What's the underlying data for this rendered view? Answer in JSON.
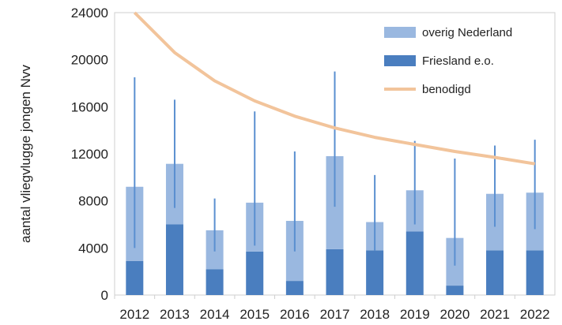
{
  "chart_data": {
    "type": "bar",
    "stacked": true,
    "categories": [
      "2012",
      "2013",
      "2014",
      "2015",
      "2016",
      "2017",
      "2018",
      "2019",
      "2020",
      "2021",
      "2022"
    ],
    "ylabel": "aantal vliegvlugge jongen Nvv",
    "ylim": [
      0,
      24000
    ],
    "yticks": [
      0,
      4000,
      8000,
      12000,
      16000,
      20000,
      24000
    ],
    "grid": false,
    "legend_position": "top-right",
    "series": [
      {
        "name": "Friesland e.o.",
        "kind": "bar",
        "color": "#4a7ebf",
        "values": [
          2900,
          6000,
          2200,
          3700,
          1200,
          3900,
          3800,
          5400,
          800,
          3800,
          3800
        ]
      },
      {
        "name": "overig Nederland",
        "kind": "bar",
        "color": "#9ab8e0",
        "values": [
          6300,
          5150,
          3300,
          4150,
          5100,
          7900,
          2400,
          3500,
          4050,
          4800,
          4900
        ]
      },
      {
        "name": "benodigd",
        "kind": "line",
        "color": "#f2c49b",
        "values": [
          24000,
          20600,
          18200,
          16500,
          15200,
          14200,
          13400,
          12800,
          12200,
          11700,
          11150
        ]
      }
    ],
    "error_bars": {
      "color": "#5a8fd0",
      "low": [
        4000,
        7400,
        3700,
        4200,
        3700,
        7500,
        3800,
        6000,
        2500,
        5800,
        5600
      ],
      "high": [
        18500,
        16600,
        8200,
        15600,
        12200,
        19000,
        10200,
        13100,
        11600,
        12700,
        13200
      ]
    }
  }
}
